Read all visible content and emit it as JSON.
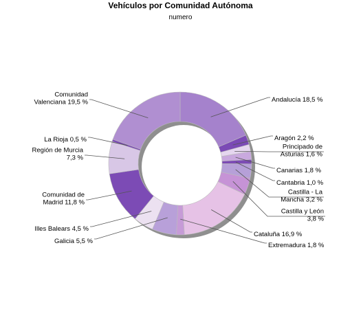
{
  "chart_data": {
    "type": "pie",
    "variant": "donut",
    "title": "Vehículos por Comunidad Autónoma",
    "subtitle": "numero",
    "slices": [
      {
        "label": [
          "Andalucía 18,5 %"
        ],
        "value": 18.5,
        "color": "#a582cc"
      },
      {
        "label": [
          "Aragón 2,2 %"
        ],
        "value": 2.2,
        "color": "#7b4ab5"
      },
      {
        "label": [
          "Principado de",
          "Asturias 1,6 %"
        ],
        "value": 1.6,
        "color": "#e5d6ef"
      },
      {
        "label": [
          "Canarias 1,8 %"
        ],
        "value": 1.8,
        "color": "#c9a9de"
      },
      {
        "label": [
          "Cantabria 1,0 %"
        ],
        "value": 1.0,
        "color": "#7c4bb4"
      },
      {
        "label": [
          "Castilla - La",
          "Mancha 3,2 %"
        ],
        "value": 3.2,
        "color": "#b6a0d8"
      },
      {
        "label": [
          "Castilla y León",
          "3,8 %"
        ],
        "value": 3.8,
        "color": "#c693d6"
      },
      {
        "label": [
          "Cataluña 16,9 %"
        ],
        "value": 16.9,
        "color": "#e6c2e6"
      },
      {
        "label": [
          "Extremadura 1,8 %"
        ],
        "value": 1.8,
        "color": "#c69bd7"
      },
      {
        "label": [
          "Galicia 5,5 %"
        ],
        "value": 5.5,
        "color": "#b8a0d9"
      },
      {
        "label": [
          "Illes Balears 4,5 %"
        ],
        "value": 4.5,
        "color": "#ece1f1"
      },
      {
        "label": [
          "Comunidad de",
          "Madrid 11,8 %"
        ],
        "value": 11.8,
        "color": "#7c4bb5"
      },
      {
        "label": [
          "Región de Murcia",
          "7,3 %"
        ],
        "value": 7.3,
        "color": "#d8c7e6"
      },
      {
        "label": [
          "La Rioja 0,5 %"
        ],
        "value": 0.5,
        "color": "#7c4bb5"
      },
      {
        "label": [
          "Comunidad",
          "Valenciana 19,5 %"
        ],
        "value": 19.5,
        "color": "#b08fd1"
      }
    ],
    "legend": "none"
  }
}
